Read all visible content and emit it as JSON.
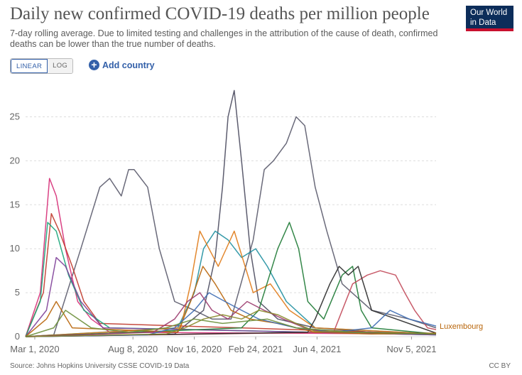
{
  "header": {
    "title": "Daily new confirmed COVID-19 deaths per million people",
    "subtitle": "7-day rolling average. Due to limited testing and challenges in the attribution of the cause of death, confirmed deaths can be lower than the true number of deaths.",
    "logo_line1": "Our World",
    "logo_line2": "in Data"
  },
  "controls": {
    "linear_label": "LINEAR",
    "log_label": "LOG",
    "add_country_label": "Add country",
    "scale_selected": "linear"
  },
  "footer": {
    "source": "Source: Johns Hopkins University CSSE COVID-19 Data",
    "license": "CC BY"
  },
  "colors": {
    "grid": "#dddddd",
    "axis_text": "#666666",
    "label_highlight": "#b8650a"
  },
  "chart_data": {
    "type": "line",
    "ylim": [
      0,
      29
    ],
    "yticks": [
      0,
      5,
      10,
      15,
      20,
      25
    ],
    "grid": "horizontal-dashed",
    "x_range": [
      "2020-02-15",
      "2021-12-15"
    ],
    "x_tick_labels": [
      {
        "date": "2020-03-01",
        "label": "Mar 1, 2020"
      },
      {
        "date": "2020-08-08",
        "label": "Aug 8, 2020"
      },
      {
        "date": "2020-11-16",
        "label": "Nov 16, 2020"
      },
      {
        "date": "2021-02-24",
        "label": "Feb 24, 2021"
      },
      {
        "date": "2021-06-04",
        "label": "Jun 4, 2021"
      },
      {
        "date": "2021-11-05",
        "label": "Nov 5, 2021"
      }
    ],
    "end_labels": [
      {
        "label": "Luxembourg",
        "color": "#b8650a"
      }
    ],
    "series": [
      {
        "color": "#5a5a6b",
        "x": [
          "2020-02-15",
          "2020-04-01",
          "2020-05-15",
          "2020-06-15",
          "2020-07-01",
          "2020-07-20",
          "2020-08-01",
          "2020-08-10",
          "2020-09-01",
          "2020-09-20",
          "2020-10-15",
          "2020-11-16",
          "2020-12-15",
          "2021-01-15",
          "2021-02-20",
          "2021-03-10",
          "2021-03-25",
          "2021-04-15",
          "2021-05-01",
          "2021-05-15",
          "2021-06-01",
          "2021-06-20",
          "2021-07-15",
          "2021-09-01",
          "2021-11-01",
          "2021-12-15"
        ],
        "y": [
          0,
          0.2,
          10,
          17,
          18,
          16,
          19,
          19,
          17,
          10,
          4,
          3,
          2,
          2,
          11,
          19,
          20,
          22,
          25,
          24,
          17,
          12,
          6,
          3,
          2,
          1
        ]
      },
      {
        "color": "#4a4a5e",
        "x": [
          "2020-02-15",
          "2020-10-15",
          "2020-12-01",
          "2020-12-20",
          "2021-01-01",
          "2021-01-10",
          "2021-01-20",
          "2021-02-01",
          "2021-02-15",
          "2021-03-01",
          "2021-04-01",
          "2021-06-01",
          "2021-09-01",
          "2021-12-15"
        ],
        "y": [
          0,
          0.3,
          3,
          9,
          17,
          25,
          28,
          20,
          10,
          4,
          2,
          1,
          0.5,
          0.3
        ]
      },
      {
        "color": "#d62e77",
        "x": [
          "2020-02-15",
          "2020-03-10",
          "2020-03-25",
          "2020-04-05",
          "2020-04-20",
          "2020-05-10",
          "2020-06-01",
          "2020-07-01",
          "2021-12-15"
        ],
        "y": [
          0,
          5,
          18,
          16,
          10,
          4,
          2,
          0.5,
          0.3
        ]
      },
      {
        "color": "#c0392b",
        "x": [
          "2020-02-15",
          "2020-03-15",
          "2020-03-28",
          "2020-04-10",
          "2020-05-01",
          "2020-05-20",
          "2020-06-15",
          "2021-12-15"
        ],
        "y": [
          0,
          5,
          14,
          12,
          8,
          4,
          1.5,
          0.3
        ]
      },
      {
        "color": "#18a67a",
        "x": [
          "2020-02-15",
          "2020-03-10",
          "2020-03-22",
          "2020-04-05",
          "2020-04-25",
          "2020-05-20",
          "2020-07-01",
          "2021-12-15"
        ],
        "y": [
          0,
          4,
          13,
          12,
          7,
          3,
          1,
          0.2
        ]
      },
      {
        "color": "#7e3f98",
        "x": [
          "2020-02-15",
          "2020-03-20",
          "2020-04-05",
          "2020-04-20",
          "2020-05-15",
          "2020-06-20",
          "2021-12-15"
        ],
        "y": [
          0,
          3,
          9,
          8,
          4,
          1,
          0.2
        ]
      },
      {
        "color": "#1f8fa0",
        "x": [
          "2020-02-15",
          "2020-10-20",
          "2020-11-16",
          "2020-12-01",
          "2020-12-20",
          "2021-01-10",
          "2021-02-01",
          "2021-02-24",
          "2021-03-15",
          "2021-04-15",
          "2021-06-01",
          "2021-12-15"
        ],
        "y": [
          0,
          1,
          5,
          10,
          12,
          11,
          9,
          10,
          8,
          4,
          1,
          0.3
        ]
      },
      {
        "color": "#e07b18",
        "x": [
          "2020-02-15",
          "2020-10-25",
          "2020-11-10",
          "2020-11-25",
          "2020-12-10",
          "2020-12-25",
          "2021-01-20",
          "2021-02-20",
          "2021-03-20",
          "2021-04-20",
          "2021-06-01",
          "2021-12-15"
        ],
        "y": [
          0,
          1,
          6,
          12,
          10,
          8,
          12,
          5,
          6,
          3,
          1,
          0.3
        ]
      },
      {
        "color": "#1e7a35",
        "x": [
          "2020-02-15",
          "2021-02-01",
          "2021-03-01",
          "2021-04-01",
          "2021-04-20",
          "2021-05-05",
          "2021-05-20",
          "2021-06-15",
          "2021-07-15",
          "2021-08-01",
          "2021-08-15",
          "2021-09-01",
          "2021-12-15"
        ],
        "y": [
          0,
          1,
          3,
          10,
          13,
          10,
          4,
          2,
          7,
          8,
          3,
          1,
          0.3
        ]
      },
      {
        "color": "#c24a5a",
        "x": [
          "2020-02-15",
          "2021-07-01",
          "2021-08-01",
          "2021-08-25",
          "2021-09-15",
          "2021-10-10",
          "2021-10-25",
          "2021-11-10",
          "2021-12-01",
          "2021-12-15"
        ],
        "y": [
          0,
          0.5,
          6,
          7,
          7.5,
          7,
          5,
          3,
          1,
          0.8
        ]
      },
      {
        "color": "#2a2a2a",
        "x": [
          "2020-02-15",
          "2021-05-20",
          "2021-06-01",
          "2021-06-25",
          "2021-07-10",
          "2021-07-25",
          "2021-08-10",
          "2021-09-01",
          "2021-12-15"
        ],
        "y": [
          0,
          0.5,
          2,
          6,
          8,
          7,
          8,
          3,
          0.4
        ]
      },
      {
        "color": "#b8650a",
        "x": [
          "2020-02-15",
          "2020-03-20",
          "2020-04-05",
          "2020-05-01",
          "2020-10-20",
          "2020-11-10",
          "2020-11-30",
          "2020-12-20",
          "2021-01-15",
          "2021-02-15",
          "2021-04-01",
          "2021-06-01",
          "2021-09-01",
          "2021-12-15"
        ],
        "y": [
          0,
          2,
          4,
          1,
          0.5,
          4,
          8,
          6,
          3,
          2,
          1.5,
          0.5,
          0.3,
          0.4
        ]
      },
      {
        "color": "#3d6bb3",
        "x": [
          "2020-02-15",
          "2020-09-01",
          "2020-10-15",
          "2020-11-16",
          "2020-12-10",
          "2021-01-05",
          "2021-02-01",
          "2021-03-01",
          "2021-05-01",
          "2021-07-01",
          "2021-09-01",
          "2021-10-01",
          "2021-11-01",
          "2021-12-15"
        ],
        "y": [
          0,
          0.2,
          1,
          3,
          5,
          4,
          3,
          2,
          1,
          0.5,
          1,
          3,
          2,
          1.2
        ]
      },
      {
        "color": "#9b3b6e",
        "x": [
          "2020-02-15",
          "2020-09-10",
          "2020-10-15",
          "2020-11-05",
          "2020-11-25",
          "2020-12-15",
          "2021-01-10",
          "2021-02-10",
          "2021-03-10",
          "2021-04-10",
          "2021-05-15",
          "2021-06-15",
          "2021-09-01",
          "2021-12-15"
        ],
        "y": [
          0,
          0.5,
          2,
          4,
          5,
          3,
          2,
          4,
          3,
          2,
          1,
          0.5,
          0.5,
          0.3
        ]
      },
      {
        "color": "#8a8a2a",
        "x": [
          "2020-02-15",
          "2020-10-01",
          "2020-11-01",
          "2020-12-01",
          "2021-01-01",
          "2021-02-01",
          "2021-03-01",
          "2021-04-01",
          "2021-05-01",
          "2021-06-01",
          "2021-12-15"
        ],
        "y": [
          0,
          0.3,
          1,
          2,
          2.5,
          2,
          3,
          2.5,
          1.5,
          0.6,
          0.3
        ]
      },
      {
        "color": "#6b8f3a",
        "x": [
          "2020-02-15",
          "2020-04-01",
          "2020-04-20",
          "2020-06-01",
          "2020-08-01",
          "2020-10-01",
          "2020-11-16",
          "2021-01-01",
          "2021-03-15",
          "2021-05-01",
          "2021-08-01",
          "2021-12-15"
        ],
        "y": [
          0,
          1,
          3,
          1,
          0.5,
          1,
          2,
          1.5,
          2,
          1,
          0.5,
          0.3
        ]
      }
    ]
  }
}
